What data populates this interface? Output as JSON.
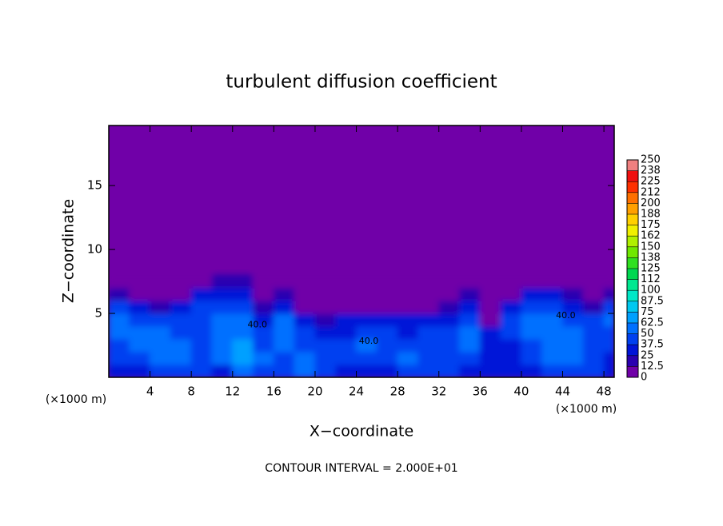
{
  "chart_data": {
    "type": "heatmap",
    "title": "turbulent diffusion coefficient",
    "x_label": "X−coordinate",
    "y_label": "Z−coordinate",
    "x_unit_label": "(×1000 m)",
    "footer": "CONTOUR INTERVAL = 2.000E+01",
    "xlim": [
      0,
      49
    ],
    "ylim": [
      0,
      19.7
    ],
    "xticks": [
      4,
      8,
      12,
      16,
      20,
      24,
      28,
      32,
      36,
      40,
      44,
      48
    ],
    "yticks": [
      5,
      10,
      15
    ],
    "x_edges": [
      0,
      2,
      4,
      6,
      8,
      10,
      12,
      14,
      16,
      18,
      20,
      22,
      24,
      26,
      28,
      30,
      32,
      34,
      36,
      38,
      40,
      42,
      44,
      46,
      48,
      49
    ],
    "y_edges": [
      0,
      1,
      2,
      3,
      4,
      5,
      6,
      7,
      8
    ],
    "z": [
      [
        30,
        35,
        40,
        45,
        40,
        35,
        50,
        45,
        40,
        50,
        40,
        35,
        30,
        35,
        40,
        45,
        40,
        35,
        30,
        25,
        30,
        40,
        45,
        40,
        30
      ],
      [
        40,
        45,
        50,
        55,
        45,
        60,
        65,
        50,
        45,
        55,
        45,
        40,
        40,
        45,
        50,
        45,
        40,
        45,
        35,
        30,
        40,
        50,
        55,
        45,
        35
      ],
      [
        45,
        50,
        55,
        50,
        45,
        60,
        65,
        40,
        50,
        45,
        40,
        45,
        50,
        45,
        40,
        45,
        40,
        50,
        35,
        35,
        45,
        55,
        50,
        45,
        40
      ],
      [
        50,
        55,
        50,
        45,
        40,
        55,
        60,
        40,
        55,
        40,
        30,
        35,
        40,
        40,
        35,
        45,
        40,
        55,
        30,
        40,
        50,
        55,
        50,
        45,
        45
      ],
      [
        55,
        45,
        40,
        40,
        45,
        50,
        50,
        30,
        50,
        30,
        20,
        25,
        25,
        30,
        25,
        30,
        35,
        45,
        10,
        45,
        50,
        50,
        45,
        40,
        55
      ],
      [
        40,
        30,
        20,
        30,
        40,
        45,
        45,
        15,
        30,
        10,
        5,
        10,
        10,
        10,
        5,
        10,
        15,
        30,
        5,
        30,
        40,
        40,
        30,
        20,
        40
      ],
      [
        20,
        10,
        5,
        10,
        25,
        35,
        35,
        5,
        15,
        3,
        2,
        3,
        5,
        5,
        2,
        3,
        5,
        15,
        2,
        10,
        30,
        30,
        15,
        5,
        20
      ],
      [
        5,
        2,
        1,
        2,
        5,
        15,
        15,
        2,
        5,
        1,
        0,
        1,
        1,
        1,
        0,
        1,
        1,
        3,
        0,
        2,
        10,
        10,
        3,
        1,
        5
      ]
    ],
    "contour_labels": [
      {
        "text": "40.0",
        "x": 14.4,
        "y": 4.1
      },
      {
        "text": "40.0",
        "x": 25.2,
        "y": 2.8
      },
      {
        "text": "40.0",
        "x": 44.3,
        "y": 4.8
      }
    ],
    "colorbar": {
      "ticks": [
        0,
        12.5,
        25,
        37.5,
        50,
        62.5,
        75,
        87.5,
        100,
        {
          "value": 112.5,
          "label": "112"
        },
        125,
        {
          "value": 137.5,
          "label": "138"
        },
        150,
        {
          "value": 162.5,
          "label": "162"
        },
        175,
        {
          "value": 187.5,
          "label": "188"
        },
        200,
        {
          "value": 212.5,
          "label": "212"
        },
        225,
        {
          "value": 237.5,
          "label": "238"
        },
        250
      ],
      "colors": [
        "#7000a8",
        "#2a00b0",
        "#0014d8",
        "#0040f0",
        "#0070ff",
        "#00a0ff",
        "#00c8f0",
        "#00e8c8",
        "#00e890",
        "#00d850",
        "#30e020",
        "#70e800",
        "#b0f000",
        "#f0f000",
        "#ffd000",
        "#ffa000",
        "#ff7000",
        "#ff3000",
        "#f01010",
        "#f08080"
      ]
    }
  }
}
